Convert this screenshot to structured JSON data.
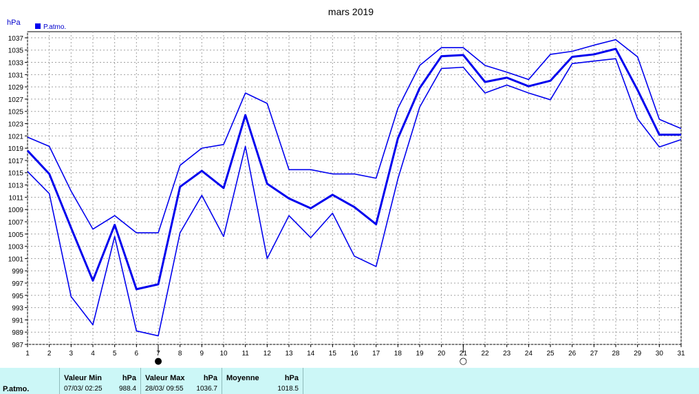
{
  "chart_data": {
    "type": "line",
    "title": "mars 2019",
    "ylabel": "hPa",
    "legend": "P.atmo.",
    "legend_position": "top-left",
    "grid": true,
    "series_color": "#0000ee",
    "x": [
      "1",
      "2",
      "3",
      "4",
      "5",
      "6",
      "7",
      "8",
      "9",
      "10",
      "11",
      "12",
      "13",
      "14",
      "15",
      "16",
      "17",
      "18",
      "19",
      "20",
      "21",
      "22",
      "23",
      "24",
      "25",
      "26",
      "27",
      "28",
      "29",
      "30",
      "31"
    ],
    "xlim": [
      1,
      31
    ],
    "ylim": [
      987,
      1038
    ],
    "yticks": [
      "987",
      "989",
      "991",
      "993",
      "995",
      "997",
      "999",
      "1001",
      "1003",
      "1005",
      "1007",
      "1009",
      "1011",
      "1013",
      "1015",
      "1017",
      "1019",
      "1021",
      "1023",
      "1025",
      "1027",
      "1029",
      "1031",
      "1033",
      "1035",
      "1037"
    ],
    "series": [
      {
        "role": "max",
        "values": [
          1020.8,
          1019.3,
          1012.0,
          1005.8,
          1008.0,
          1005.2,
          1005.2,
          1016.2,
          1019.0,
          1019.6,
          1028.0,
          1026.3,
          1015.5,
          1015.5,
          1014.8,
          1014.8,
          1014.1,
          1025.5,
          1032.5,
          1035.4,
          1035.4,
          1032.5,
          1031.4,
          1030.2,
          1034.3,
          1034.8,
          1035.8,
          1036.7,
          1033.9,
          1023.7,
          1022.2
        ]
      },
      {
        "role": "mean",
        "values": [
          1018.6,
          1014.8,
          1006.0,
          997.4,
          1006.5,
          996.0,
          996.8,
          1012.7,
          1015.3,
          1012.5,
          1024.4,
          1013.2,
          1010.8,
          1009.2,
          1011.4,
          1009.4,
          1006.6,
          1020.6,
          1028.8,
          1034.0,
          1034.2,
          1029.8,
          1030.5,
          1029.1,
          1030.0,
          1033.9,
          1034.3,
          1035.2,
          1028.5,
          1021.2,
          1021.2
        ]
      },
      {
        "role": "min",
        "values": [
          1015.2,
          1011.6,
          994.8,
          990.2,
          1004.6,
          989.2,
          988.4,
          1005.2,
          1011.3,
          1004.6,
          1019.3,
          1001.0,
          1008.0,
          1004.4,
          1008.4,
          1001.4,
          999.7,
          1014.0,
          1025.7,
          1032.0,
          1032.2,
          1028.0,
          1029.3,
          1028.0,
          1026.9,
          1032.8,
          1033.2,
          1033.6,
          1023.8,
          1019.2,
          1020.4
        ]
      }
    ],
    "annotations": [
      {
        "x": "7",
        "marker": "●"
      },
      {
        "x": "21",
        "marker": "○"
      }
    ]
  },
  "stats": {
    "row_label": "P.atmo.",
    "min_header": "Valeur Min",
    "max_header": "Valeur Max",
    "mean_header": "Moyenne",
    "unit": "hPa",
    "min_when": "07/03/  02:25",
    "min_value": "988.4",
    "max_when": "28/03/  09:55",
    "max_value": "1036.7",
    "mean_value": "1018.5"
  }
}
